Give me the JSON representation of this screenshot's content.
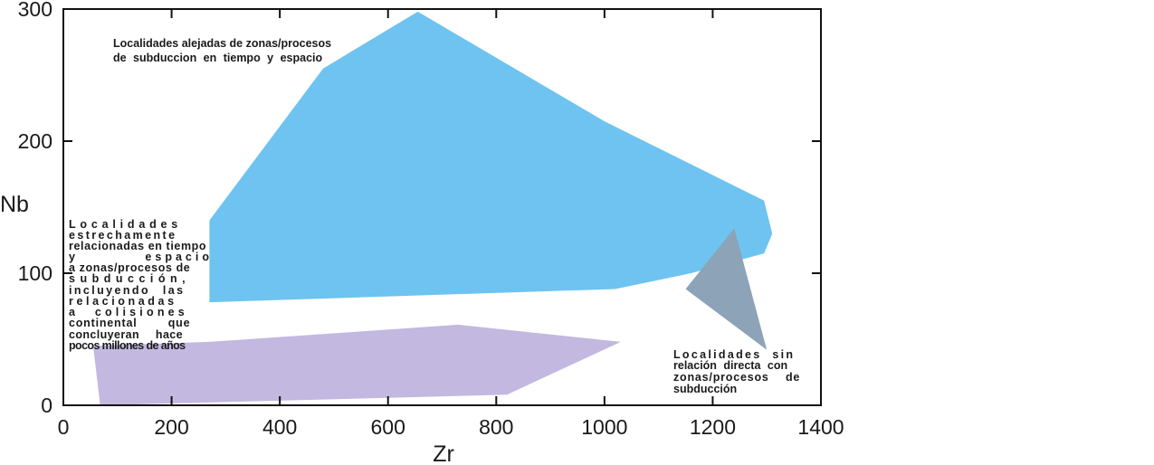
{
  "chart_data": {
    "type": "area",
    "title": "",
    "xlabel": "Zr",
    "ylabel": "Nb",
    "xlim": [
      0,
      1400
    ],
    "ylim": [
      0,
      300
    ],
    "xticks": [
      0,
      200,
      400,
      600,
      800,
      1000,
      1200,
      1400
    ],
    "yticks": [
      0,
      100,
      200,
      300
    ],
    "grid": false,
    "regions": [
      {
        "label_lines": [
          "Localidades alejadas de zonas/procesos",
          "de subduccion en tiempo y espacio"
        ],
        "color": "#6ec3f0",
        "polygon": [
          [
            270,
            140
          ],
          [
            480,
            255
          ],
          [
            655,
            298
          ],
          [
            1000,
            215
          ],
          [
            1295,
            155
          ],
          [
            1310,
            130
          ],
          [
            1295,
            115
          ],
          [
            1160,
            100
          ],
          [
            1020,
            88
          ],
          [
            270,
            78
          ]
        ]
      },
      {
        "label_lines": [
          "Localidades",
          "estrechamente",
          "relacionadas en tiempo",
          "y espacio",
          "a zonas/procesos de",
          "subducción,",
          "incluyendo las",
          "relacionadas",
          "a colisiones",
          "continental que",
          "concluyeran hace",
          "pocos millones de años"
        ],
        "color": "#c2b8e0",
        "polygon": [
          [
            55,
            45
          ],
          [
            270,
            48
          ],
          [
            730,
            61
          ],
          [
            1030,
            48
          ],
          [
            820,
            8
          ],
          [
            68,
            0
          ]
        ]
      },
      {
        "label_lines": [
          "Localidades sin",
          "relación directa con",
          "zonas/procesos de",
          "subducción"
        ],
        "color": "#8ca3b8",
        "polygon": [
          [
            1150,
            88
          ],
          [
            1240,
            134
          ],
          [
            1300,
            42
          ]
        ]
      }
    ]
  }
}
